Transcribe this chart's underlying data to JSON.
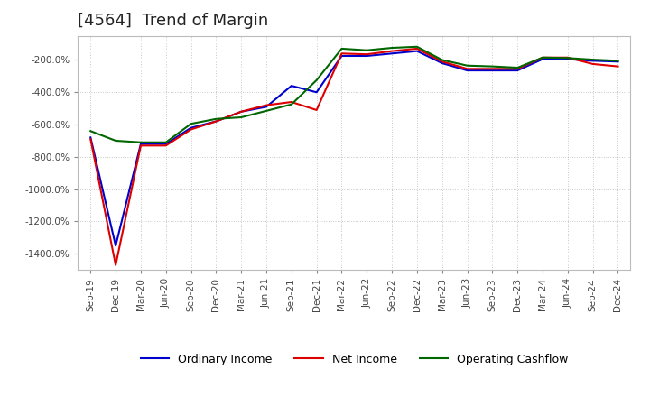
{
  "title": "[4564]  Trend of Margin",
  "title_fontsize": 13,
  "background_color": "#ffffff",
  "plot_bg_color": "#ffffff",
  "grid_color": "#999999",
  "x_labels": [
    "Sep-19",
    "Dec-19",
    "Mar-20",
    "Jun-20",
    "Sep-20",
    "Dec-20",
    "Mar-21",
    "Jun-21",
    "Sep-21",
    "Dec-21",
    "Mar-22",
    "Jun-22",
    "Sep-22",
    "Dec-22",
    "Mar-23",
    "Jun-23",
    "Sep-23",
    "Dec-23",
    "Mar-24",
    "Jun-24",
    "Sep-24",
    "Dec-24"
  ],
  "ordinary_income": [
    -680,
    -1350,
    -720,
    -720,
    -620,
    -580,
    -520,
    -490,
    -360,
    -400,
    -175,
    -175,
    -160,
    -145,
    -220,
    -265,
    -265,
    -265,
    -195,
    -195,
    -205,
    -210
  ],
  "net_income": [
    -690,
    -1470,
    -730,
    -730,
    -630,
    -580,
    -520,
    -480,
    -460,
    -510,
    -160,
    -165,
    -145,
    -130,
    -210,
    -255,
    -255,
    -255,
    -185,
    -185,
    -225,
    -240
  ],
  "operating_cashflow": [
    -640,
    -700,
    -710,
    -710,
    -595,
    -565,
    -555,
    -515,
    -475,
    -325,
    -130,
    -140,
    -125,
    -118,
    -200,
    -235,
    -240,
    -248,
    -185,
    -188,
    -198,
    -205
  ],
  "ylim": [
    -1500,
    -50
  ],
  "ytick_values": [
    -200,
    -400,
    -600,
    -800,
    -1000,
    -1200,
    -1400
  ],
  "line_colors": {
    "ordinary_income": "#0000cc",
    "net_income": "#dd0000",
    "operating_cashflow": "#006600"
  },
  "line_width": 1.5,
  "legend_labels": [
    "Ordinary Income",
    "Net Income",
    "Operating Cashflow"
  ]
}
